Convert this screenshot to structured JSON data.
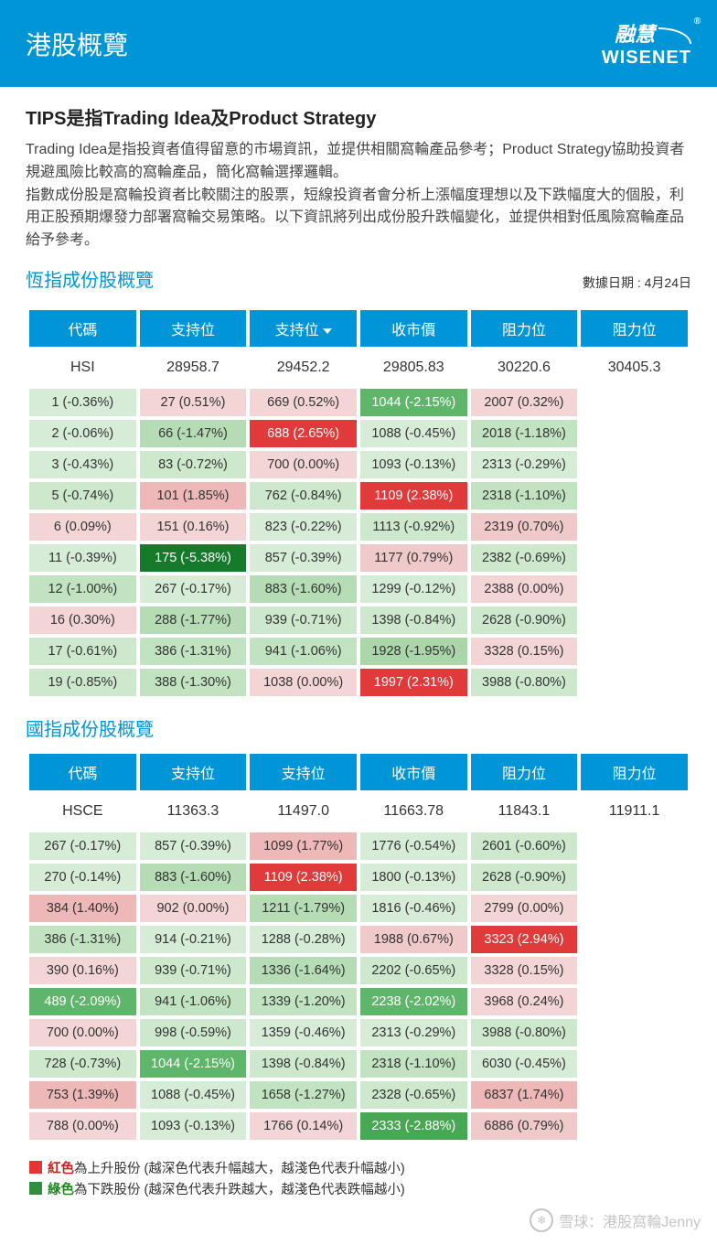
{
  "header": {
    "title": "港股概覽",
    "logo_top": "融慧",
    "logo_bottom": "WISENET"
  },
  "intro": {
    "subtitle": "TIPS是指Trading Idea及Product Strategy",
    "desc1": "Trading Idea是指投資者值得留意的市場資訊，並提供相關窩輪產品參考；Product Strategy協助投資者規避風險比較高的窩輪產品，簡化窩輪選擇邏輯。",
    "desc2": "指數成份股是窩輪投資者比較關注的股票，短線投資者會分析上漲幅度理想以及下跌幅度大的個股，利用正股預期爆發力部署窩輪交易策略。以下資訊將列出成份股升跌幅變化，並提供相對低風險窩輪產品給予參考。"
  },
  "date_label": "數據日期 : 4月24日",
  "columns": [
    "代碼",
    "支持位",
    "支持位",
    "收市價",
    "阻力位",
    "阻力位"
  ],
  "hsi": {
    "title": "恆指成份股概覽",
    "index_row": [
      "HSI",
      "28958.7",
      "29452.2",
      "29805.83",
      "30220.6",
      "30405.3"
    ],
    "rows": [
      [
        {
          "t": "1 (-0.36%)",
          "c": "#d6ecd6"
        },
        {
          "t": "27 (0.51%)",
          "c": "#f4d5d5"
        },
        {
          "t": "669 (0.52%)",
          "c": "#f4d5d5"
        },
        {
          "t": "1044 (-2.15%)",
          "c": "#5fb66a",
          "w": 1
        },
        {
          "t": "2007 (0.32%)",
          "c": "#f4d5d5"
        }
      ],
      [
        {
          "t": "2 (-0.06%)",
          "c": "#d6ecd6"
        },
        {
          "t": "66 (-1.47%)",
          "c": "#b6dcb6"
        },
        {
          "t": "688 (2.65%)",
          "c": "#e03a3a",
          "w": 1
        },
        {
          "t": "1088 (-0.45%)",
          "c": "#d6ecd6"
        },
        {
          "t": "2018 (-1.18%)",
          "c": "#c2e3c2"
        }
      ],
      [
        {
          "t": "3 (-0.43%)",
          "c": "#d6ecd6"
        },
        {
          "t": "83 (-0.72%)",
          "c": "#cde8cd"
        },
        {
          "t": "700 (0.00%)",
          "c": "#f4d5d5"
        },
        {
          "t": "1093 (-0.13%)",
          "c": "#d6ecd6"
        },
        {
          "t": "2313 (-0.29%)",
          "c": "#d6ecd6"
        }
      ],
      [
        {
          "t": "5 (-0.74%)",
          "c": "#cde8cd"
        },
        {
          "t": "101 (1.85%)",
          "c": "#efb8b8"
        },
        {
          "t": "762 (-0.84%)",
          "c": "#cde8cd"
        },
        {
          "t": "1109 (2.38%)",
          "c": "#e03a3a",
          "w": 1
        },
        {
          "t": "2318 (-1.10%)",
          "c": "#c2e3c2"
        }
      ],
      [
        {
          "t": "6 (0.09%)",
          "c": "#f4d5d5"
        },
        {
          "t": "151 (0.16%)",
          "c": "#f4d5d5"
        },
        {
          "t": "823 (-0.22%)",
          "c": "#d6ecd6"
        },
        {
          "t": "1113 (-0.92%)",
          "c": "#cde8cd"
        },
        {
          "t": "2319 (0.70%)",
          "c": "#f0caca"
        }
      ],
      [
        {
          "t": "11 (-0.39%)",
          "c": "#d6ecd6"
        },
        {
          "t": "175 (-5.38%)",
          "c": "#157a2a",
          "w": 1
        },
        {
          "t": "857 (-0.39%)",
          "c": "#d6ecd6"
        },
        {
          "t": "1177 (0.79%)",
          "c": "#f0caca"
        },
        {
          "t": "2382 (-0.69%)",
          "c": "#cde8cd"
        }
      ],
      [
        {
          "t": "12 (-1.00%)",
          "c": "#c2e3c2"
        },
        {
          "t": "267 (-0.17%)",
          "c": "#d6ecd6"
        },
        {
          "t": "883 (-1.60%)",
          "c": "#b6dcb6"
        },
        {
          "t": "1299 (-0.12%)",
          "c": "#d6ecd6"
        },
        {
          "t": "2388 (0.00%)",
          "c": "#f4d5d5"
        }
      ],
      [
        {
          "t": "16 (0.30%)",
          "c": "#f4d5d5"
        },
        {
          "t": "288 (-1.77%)",
          "c": "#b6dcb6"
        },
        {
          "t": "939 (-0.71%)",
          "c": "#cde8cd"
        },
        {
          "t": "1398 (-0.84%)",
          "c": "#cde8cd"
        },
        {
          "t": "2628 (-0.90%)",
          "c": "#cde8cd"
        }
      ],
      [
        {
          "t": "17 (-0.61%)",
          "c": "#cde8cd"
        },
        {
          "t": "386 (-1.31%)",
          "c": "#c2e3c2"
        },
        {
          "t": "941 (-1.06%)",
          "c": "#c2e3c2"
        },
        {
          "t": "1928 (-1.95%)",
          "c": "#aad6aa"
        },
        {
          "t": "3328 (0.15%)",
          "c": "#f4d5d5"
        }
      ],
      [
        {
          "t": "19 (-0.85%)",
          "c": "#cde8cd"
        },
        {
          "t": "388 (-1.30%)",
          "c": "#c2e3c2"
        },
        {
          "t": "1038 (0.00%)",
          "c": "#f4d5d5"
        },
        {
          "t": "1997 (2.31%)",
          "c": "#e03a3a",
          "w": 1
        },
        {
          "t": "3988 (-0.80%)",
          "c": "#cde8cd"
        }
      ]
    ]
  },
  "hsce": {
    "title": "國指成份股概覽",
    "index_row": [
      "HSCE",
      "11363.3",
      "11497.0",
      "11663.78",
      "11843.1",
      "11911.1"
    ],
    "rows": [
      [
        {
          "t": "267 (-0.17%)",
          "c": "#d6ecd6"
        },
        {
          "t": "857 (-0.39%)",
          "c": "#d6ecd6"
        },
        {
          "t": "1099 (1.77%)",
          "c": "#efb8b8"
        },
        {
          "t": "1776 (-0.54%)",
          "c": "#d6ecd6"
        },
        {
          "t": "2601 (-0.60%)",
          "c": "#cde8cd"
        }
      ],
      [
        {
          "t": "270 (-0.14%)",
          "c": "#d6ecd6"
        },
        {
          "t": "883 (-1.60%)",
          "c": "#b6dcb6"
        },
        {
          "t": "1109 (2.38%)",
          "c": "#e03a3a",
          "w": 1
        },
        {
          "t": "1800 (-0.13%)",
          "c": "#d6ecd6"
        },
        {
          "t": "2628 (-0.90%)",
          "c": "#cde8cd"
        }
      ],
      [
        {
          "t": "384 (1.40%)",
          "c": "#efb8b8"
        },
        {
          "t": "902 (0.00%)",
          "c": "#f4d5d5"
        },
        {
          "t": "1211 (-1.79%)",
          "c": "#b6dcb6"
        },
        {
          "t": "1816 (-0.46%)",
          "c": "#d6ecd6"
        },
        {
          "t": "2799 (0.00%)",
          "c": "#f4d5d5"
        }
      ],
      [
        {
          "t": "386 (-1.31%)",
          "c": "#c2e3c2"
        },
        {
          "t": "914 (-0.21%)",
          "c": "#d6ecd6"
        },
        {
          "t": "1288 (-0.28%)",
          "c": "#d6ecd6"
        },
        {
          "t": "1988 (0.67%)",
          "c": "#f0caca"
        },
        {
          "t": "3323 (2.94%)",
          "c": "#e03a3a",
          "w": 1
        }
      ],
      [
        {
          "t": "390 (0.16%)",
          "c": "#f4d5d5"
        },
        {
          "t": "939 (-0.71%)",
          "c": "#cde8cd"
        },
        {
          "t": "1336 (-1.64%)",
          "c": "#b6dcb6"
        },
        {
          "t": "2202 (-0.65%)",
          "c": "#cde8cd"
        },
        {
          "t": "3328 (0.15%)",
          "c": "#f4d5d5"
        }
      ],
      [
        {
          "t": "489 (-2.09%)",
          "c": "#5fb66a",
          "w": 1
        },
        {
          "t": "941 (-1.06%)",
          "c": "#c2e3c2"
        },
        {
          "t": "1339 (-1.20%)",
          "c": "#c2e3c2"
        },
        {
          "t": "2238 (-2.02%)",
          "c": "#5fb66a",
          "w": 1
        },
        {
          "t": "3968 (0.24%)",
          "c": "#f4d5d5"
        }
      ],
      [
        {
          "t": "700 (0.00%)",
          "c": "#f4d5d5"
        },
        {
          "t": "998 (-0.59%)",
          "c": "#cde8cd"
        },
        {
          "t": "1359 (-0.46%)",
          "c": "#d6ecd6"
        },
        {
          "t": "2313 (-0.29%)",
          "c": "#d6ecd6"
        },
        {
          "t": "3988 (-0.80%)",
          "c": "#cde8cd"
        }
      ],
      [
        {
          "t": "728 (-0.73%)",
          "c": "#cde8cd"
        },
        {
          "t": "1044 (-2.15%)",
          "c": "#5fb66a",
          "w": 1
        },
        {
          "t": "1398 (-0.84%)",
          "c": "#cde8cd"
        },
        {
          "t": "2318 (-1.10%)",
          "c": "#c2e3c2"
        },
        {
          "t": "6030 (-0.45%)",
          "c": "#d6ecd6"
        }
      ],
      [
        {
          "t": "753 (1.39%)",
          "c": "#efb8b8"
        },
        {
          "t": "1088 (-0.45%)",
          "c": "#d6ecd6"
        },
        {
          "t": "1658 (-1.27%)",
          "c": "#c2e3c2"
        },
        {
          "t": "2328 (-0.65%)",
          "c": "#cde8cd"
        },
        {
          "t": "6837 (1.74%)",
          "c": "#efb8b8"
        }
      ],
      [
        {
          "t": "788 (0.00%)",
          "c": "#f4d5d5"
        },
        {
          "t": "1093 (-0.13%)",
          "c": "#d6ecd6"
        },
        {
          "t": "1766 (0.14%)",
          "c": "#f4d5d5"
        },
        {
          "t": "2333 (-2.88%)",
          "c": "#47a753",
          "w": 1
        },
        {
          "t": "6886 (0.79%)",
          "c": "#f0caca"
        }
      ]
    ]
  },
  "legend": {
    "red_label": "紅色",
    "red_rest": "為上升股份 (越深色代表升幅越大，越淺色代表升幅越小)",
    "green_label": "綠色",
    "green_rest": "為下跌股份 (越深色代表升跌越大，越淺色代表跌幅越小)"
  },
  "footer": {
    "source": "雪球：港股窩輪Jenny"
  }
}
